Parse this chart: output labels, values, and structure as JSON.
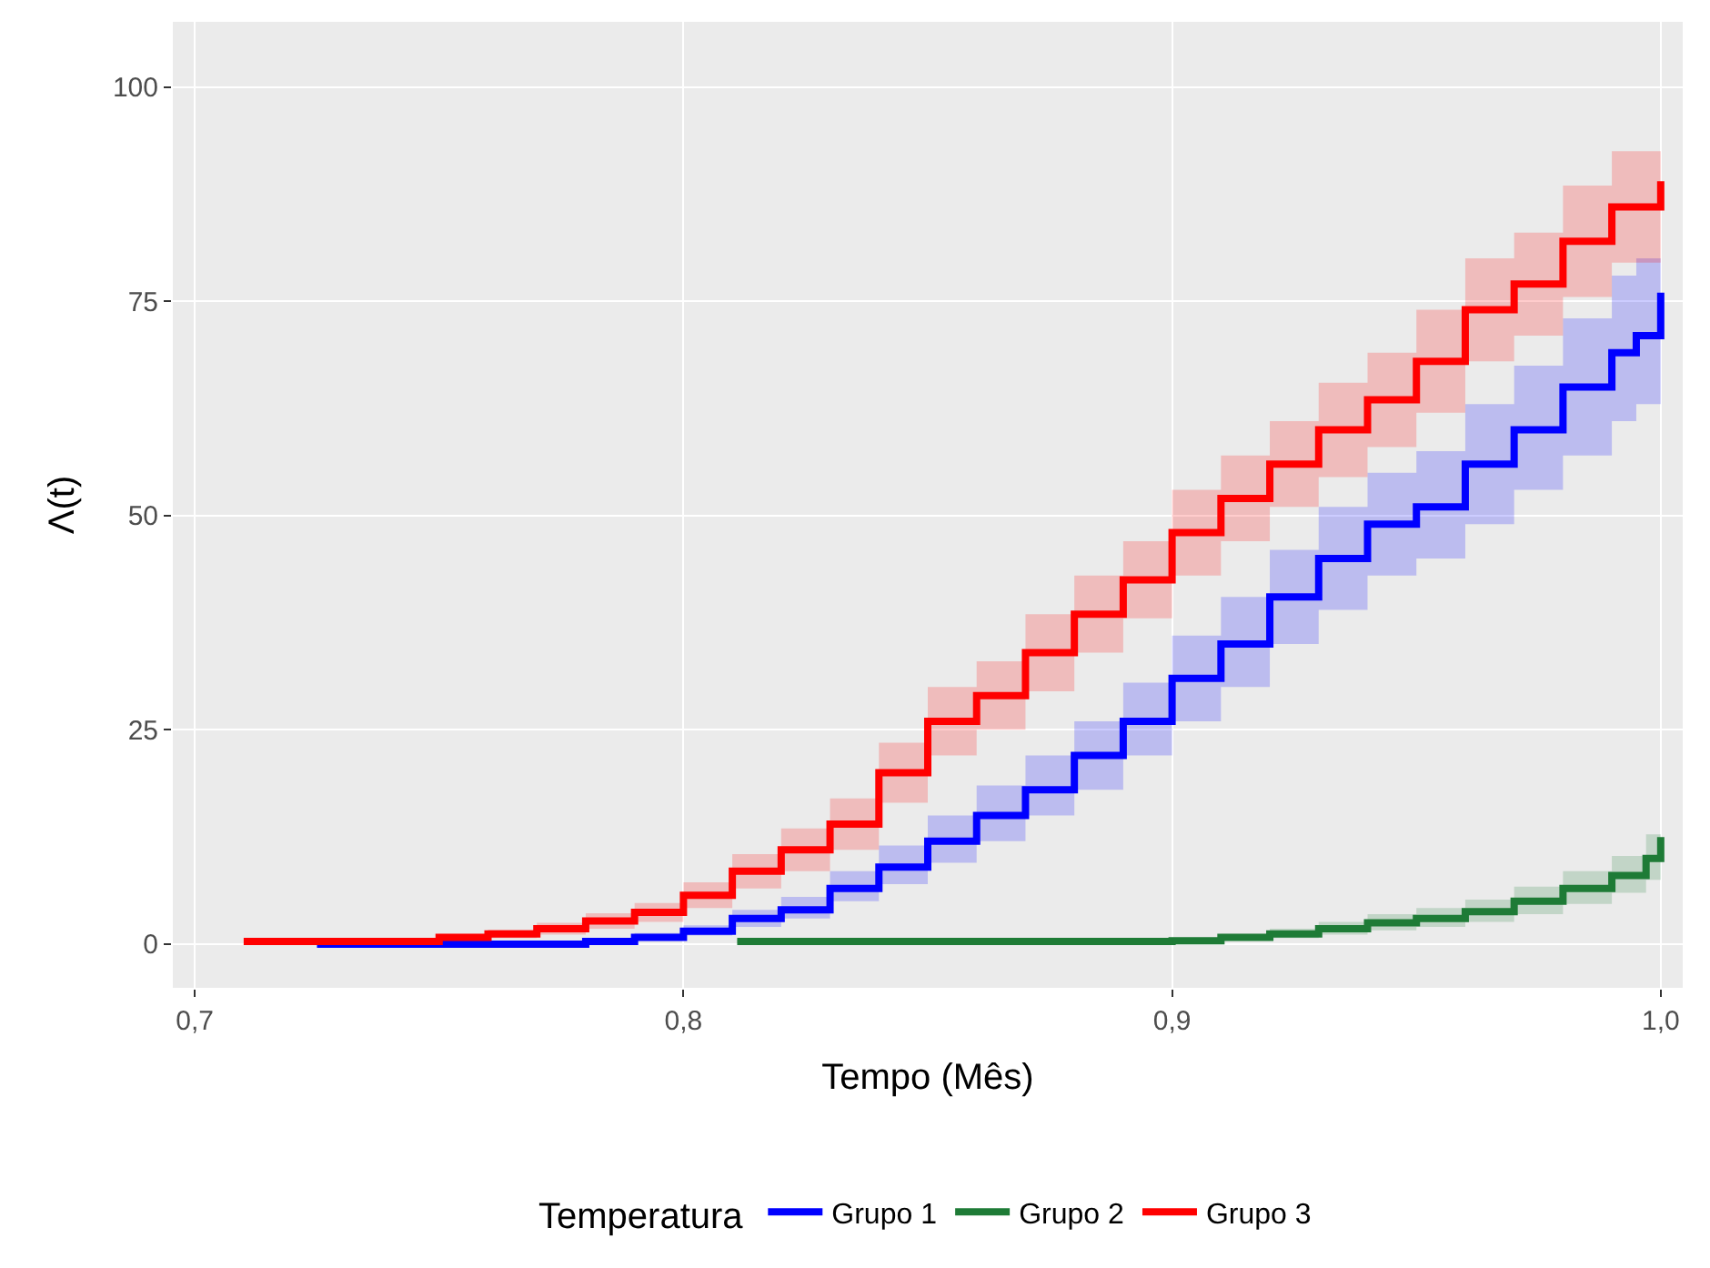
{
  "chart_data": {
    "type": "step",
    "xlabel": "Tempo (Mês)",
    "ylabel": "Λ(t)",
    "legend_title": "Temperatura",
    "legend": "bottom",
    "grid": true,
    "xlim": [
      0.6955,
      1.0045
    ],
    "ylim": [
      -5.1,
      107.6
    ],
    "xticks": [
      {
        "value": 0.7,
        "label": "0,7"
      },
      {
        "value": 0.8,
        "label": "0,8"
      },
      {
        "value": 0.9,
        "label": "0,9"
      },
      {
        "value": 1.0,
        "label": "1,0"
      }
    ],
    "yticks": [
      0,
      25,
      50,
      75,
      100
    ],
    "series": [
      {
        "name": "Grupo 1",
        "color": "#0000ff",
        "x": [
          0.725,
          0.78,
          0.79,
          0.8,
          0.81,
          0.82,
          0.83,
          0.84,
          0.85,
          0.86,
          0.87,
          0.88,
          0.89,
          0.9,
          0.91,
          0.92,
          0.93,
          0.94,
          0.95,
          0.96,
          0.97,
          0.98,
          0.99,
          0.995,
          1.0
        ],
        "values": [
          0,
          0.3,
          0.8,
          1.5,
          3,
          4,
          6.5,
          9,
          12,
          15,
          18,
          22,
          26,
          31,
          35,
          40.5,
          45,
          49,
          51,
          56,
          60,
          65,
          69,
          71,
          76
        ],
        "lower": [
          0,
          0.1,
          0.4,
          1,
          2,
          3,
          5,
          7,
          9.5,
          12,
          15,
          18,
          22,
          26,
          30,
          35,
          39,
          43,
          45,
          49,
          53,
          57,
          61,
          63,
          66
        ],
        "upper": [
          0,
          0.6,
          1.3,
          2.2,
          4,
          5.5,
          8.5,
          11.5,
          15,
          18.5,
          22,
          26,
          30.5,
          36,
          40.5,
          46,
          51,
          55,
          57.5,
          63,
          67.5,
          73,
          78,
          80,
          86
        ]
      },
      {
        "name": "Grupo 2",
        "color": "#1e7b36",
        "x": [
          0.811,
          0.9,
          0.91,
          0.92,
          0.93,
          0.94,
          0.95,
          0.96,
          0.97,
          0.98,
          0.99,
          0.997,
          1.0
        ],
        "values": [
          0.3,
          0.4,
          0.8,
          1.2,
          1.8,
          2.5,
          3,
          3.8,
          5,
          6.5,
          8,
          10,
          12.5
        ],
        "lower": [
          0.1,
          0.2,
          0.4,
          0.7,
          1.1,
          1.6,
          2,
          2.6,
          3.5,
          4.7,
          6,
          7.5,
          9.5
        ],
        "upper": [
          0.5,
          0.7,
          1.2,
          1.8,
          2.6,
          3.5,
          4.2,
          5.2,
          6.7,
          8.5,
          10.3,
          12.8,
          16
        ]
      },
      {
        "name": "Grupo 3",
        "color": "#ff0000",
        "x": [
          0.71,
          0.75,
          0.76,
          0.77,
          0.78,
          0.79,
          0.8,
          0.81,
          0.82,
          0.83,
          0.84,
          0.85,
          0.86,
          0.87,
          0.88,
          0.89,
          0.9,
          0.91,
          0.92,
          0.93,
          0.94,
          0.95,
          0.96,
          0.97,
          0.98,
          0.99,
          1.0
        ],
        "values": [
          0.3,
          0.8,
          1.2,
          1.8,
          2.7,
          3.7,
          5.7,
          8.5,
          11,
          14,
          20,
          26,
          29,
          34,
          38.5,
          42.5,
          48,
          52,
          56,
          60,
          63.5,
          68,
          74,
          77,
          82,
          86,
          89
        ],
        "lower": [
          0.1,
          0.4,
          0.7,
          1.1,
          1.8,
          2.6,
          4.2,
          6.5,
          8.5,
          11,
          16.5,
          22,
          25,
          29.5,
          34,
          38,
          43,
          47,
          51,
          54.5,
          58,
          62,
          68,
          71,
          75.5,
          79.5,
          82
        ],
        "upper": [
          0.5,
          1.2,
          1.7,
          2.5,
          3.6,
          4.8,
          7.2,
          10.5,
          13.5,
          17,
          23.5,
          30,
          33,
          38.5,
          43,
          47,
          53,
          57,
          61,
          65.5,
          69,
          74,
          80,
          83,
          88.5,
          92.5,
          96
        ]
      }
    ]
  }
}
